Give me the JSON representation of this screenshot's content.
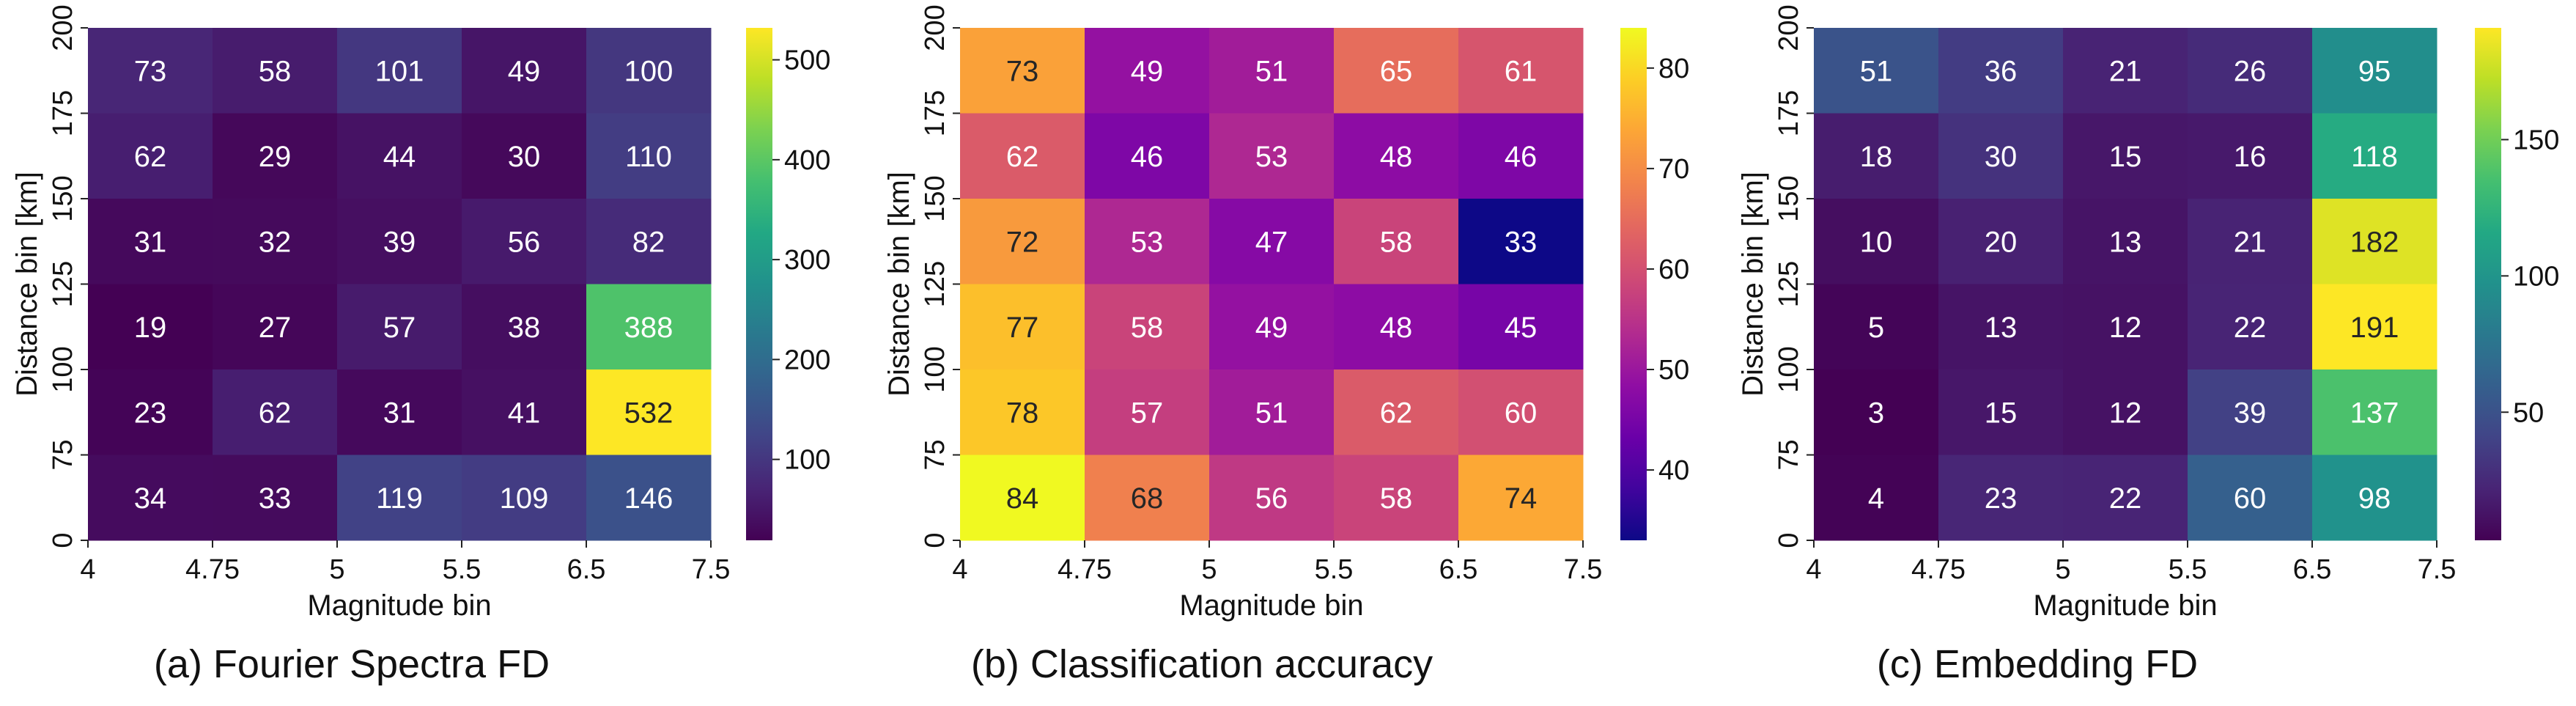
{
  "chart_data": [
    {
      "type": "heatmap",
      "caption": "(a) Fourier Spectra FD",
      "xlabel": "Magnitude bin",
      "ylabel": "Distance bin [km]",
      "x_ticks": [
        "4",
        "4.75",
        "5",
        "5.5",
        "6.5",
        "7.5"
      ],
      "y_ticks": [
        "0",
        "75",
        "100",
        "125",
        "150",
        "175",
        "200"
      ],
      "rows": [
        [
          73,
          58,
          101,
          49,
          100
        ],
        [
          62,
          29,
          44,
          30,
          110
        ],
        [
          31,
          32,
          39,
          56,
          82
        ],
        [
          19,
          27,
          57,
          38,
          388
        ],
        [
          23,
          62,
          31,
          41,
          532
        ],
        [
          34,
          33,
          119,
          109,
          146
        ]
      ],
      "colormap": "viridis",
      "vmin": 19,
      "vmax": 532,
      "colorbar_ticks": [
        100,
        200,
        300,
        400,
        500
      ]
    },
    {
      "type": "heatmap",
      "caption": "(b) Classification accuracy",
      "xlabel": "Magnitude bin",
      "ylabel": "Distance bin [km]",
      "x_ticks": [
        "4",
        "4.75",
        "5",
        "5.5",
        "6.5",
        "7.5"
      ],
      "y_ticks": [
        "0",
        "75",
        "100",
        "125",
        "150",
        "175",
        "200"
      ],
      "rows": [
        [
          73,
          49,
          51,
          65,
          61
        ],
        [
          62,
          46,
          53,
          48,
          46
        ],
        [
          72,
          53,
          47,
          58,
          33
        ],
        [
          77,
          58,
          49,
          48,
          45
        ],
        [
          78,
          57,
          51,
          62,
          60
        ],
        [
          84,
          68,
          56,
          58,
          74
        ]
      ],
      "colormap": "plasma",
      "vmin": 33,
      "vmax": 84,
      "colorbar_ticks": [
        40,
        50,
        60,
        70,
        80
      ]
    },
    {
      "type": "heatmap",
      "caption": "(c) Embedding FD",
      "xlabel": "Magnitude bin",
      "ylabel": "Distance bin [km]",
      "x_ticks": [
        "4",
        "4.75",
        "5",
        "5.5",
        "6.5",
        "7.5"
      ],
      "y_ticks": [
        "0",
        "75",
        "100",
        "125",
        "150",
        "175",
        "200"
      ],
      "rows": [
        [
          51,
          36,
          21,
          26,
          95
        ],
        [
          18,
          30,
          15,
          16,
          118
        ],
        [
          10,
          20,
          13,
          21,
          182
        ],
        [
          5,
          13,
          12,
          22,
          191
        ],
        [
          3,
          15,
          12,
          39,
          137
        ],
        [
          4,
          23,
          22,
          60,
          98
        ]
      ],
      "colormap": "viridis",
      "vmin": 3,
      "vmax": 191,
      "colorbar_ticks": [
        50,
        100,
        150
      ]
    }
  ]
}
